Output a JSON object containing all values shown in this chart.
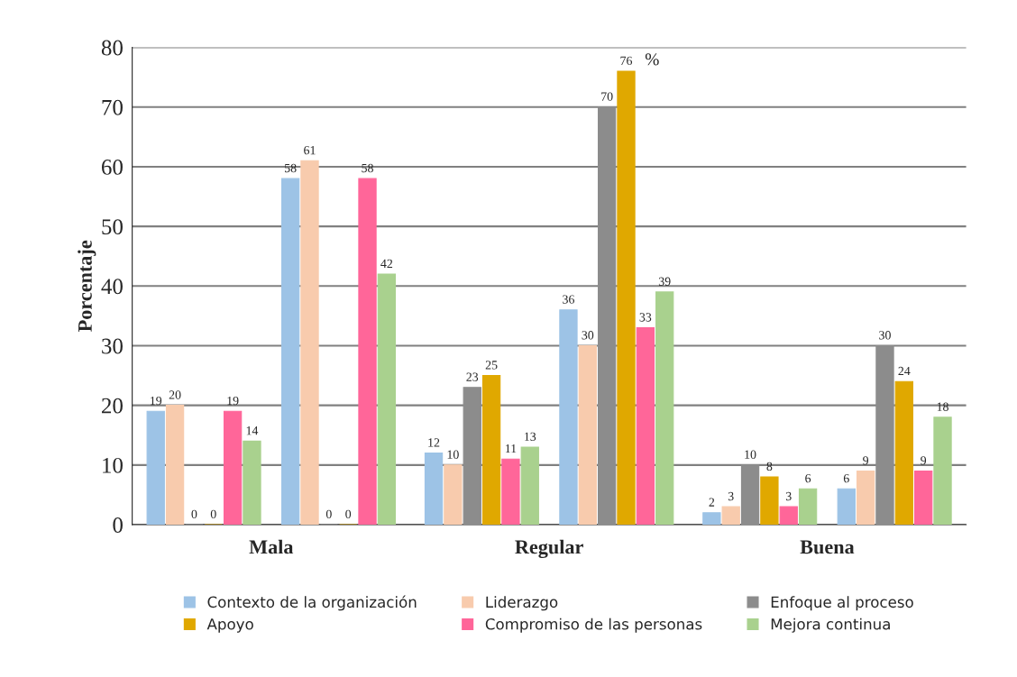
{
  "chart_data": {
    "type": "bar",
    "ylabel": "Porcentaje",
    "categories": [
      "Mala",
      "Regular",
      "Buena"
    ],
    "series": [
      {
        "name": "Contexto de la organización",
        "color": "#9dc3e6",
        "values": [
          19,
          12,
          2
        ]
      },
      {
        "name": "Liderazgo",
        "color": "#f8cbad",
        "values": [
          20,
          10,
          3
        ]
      },
      {
        "name": "Enfoque al proceso",
        "color": "#8c8c8c",
        "values": [
          0,
          23,
          10
        ]
      },
      {
        "name": "Apoyo",
        "color": "#e0a800",
        "values": [
          0,
          25,
          8
        ]
      },
      {
        "name": "Compromiso de las personas",
        "color": "#ff6699",
        "values": [
          19,
          11,
          3
        ]
      },
      {
        "name": "Mejora continua",
        "color": "#a9d18e",
        "values": [
          14,
          13,
          6
        ]
      },
      {
        "color": "#9dc3e6",
        "values": [
          58,
          36,
          6
        ]
      },
      {
        "color": "#f8cbad",
        "values": [
          61,
          30,
          9
        ]
      },
      {
        "color": "#8c8c8c",
        "values": [
          0,
          70,
          30
        ]
      },
      {
        "color": "#e0a800",
        "values": [
          0,
          76,
          24
        ]
      },
      {
        "color": "#ff6699",
        "values": [
          58,
          33,
          9
        ]
      },
      {
        "color": "#a9d18e",
        "values": [
          42,
          39,
          18
        ]
      }
    ],
    "annotations": [
      "%"
    ],
    "ylim": [
      0,
      80
    ],
    "yticks": [
      0,
      10,
      20,
      30,
      40,
      50,
      60,
      70,
      80
    ],
    "grid": "y",
    "legend": "bottom",
    "data_labels": true
  }
}
